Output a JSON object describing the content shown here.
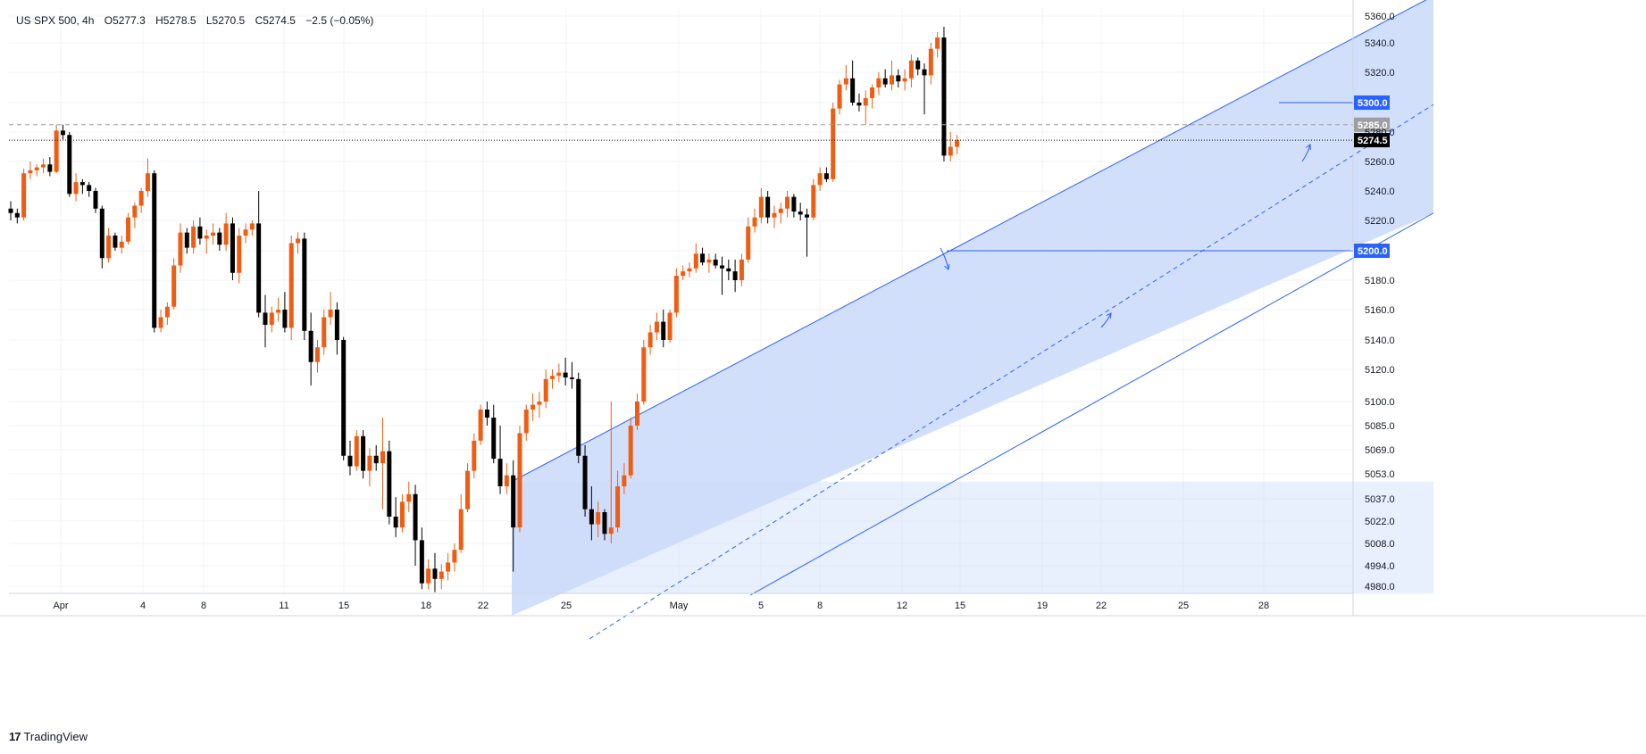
{
  "legend": {
    "symbol": "US SPX 500, 4h",
    "open": "O5277.3",
    "high": "H5278.5",
    "low": "L5270.5",
    "close": "C5274.5",
    "change": "−2.5 (−0.05%)"
  },
  "brand": {
    "logo": "17",
    "name": "TradingView"
  },
  "colors": {
    "up": "#ef5d13",
    "down": "#000000",
    "channel_fill": "#cddcfb",
    "channel_line": "#2962ff",
    "level_line": "#2962ff",
    "dashed_level": "#9e9e9e",
    "price_line": "#000000"
  },
  "chart_data": {
    "type": "candlestick",
    "title": "US SPX 500, 4h",
    "timeframe": "4h",
    "y_scale": "non-linear (as printed on the price axis)",
    "ylim": [
      4975,
      5362
    ],
    "y_ticks": [
      "5360.0",
      "5340.0",
      "5320.0",
      "5300.0",
      "5280.0",
      "5260.0",
      "5240.0",
      "5220.0",
      "5200.0",
      "5180.0",
      "5160.0",
      "5140.0",
      "5120.0",
      "5100.0",
      "5085.0",
      "5069.0",
      "5053.0",
      "5037.0",
      "5022.0",
      "5008.0",
      "4994.0",
      "4980.0"
    ],
    "x_ticks": [
      "Apr",
      "4",
      "8",
      "11",
      "15",
      "18",
      "22",
      "25",
      "May",
      "5",
      "8",
      "12",
      "15",
      "19",
      "22",
      "25",
      "28"
    ],
    "grid": true,
    "candles_approx": [
      [
        5228,
        5233,
        5220,
        5225
      ],
      [
        5225,
        5228,
        5218,
        5222
      ],
      [
        5222,
        5255,
        5220,
        5252
      ],
      [
        5252,
        5260,
        5248,
        5254
      ],
      [
        5254,
        5258,
        5250,
        5256
      ],
      [
        5256,
        5262,
        5252,
        5258
      ],
      [
        5258,
        5263,
        5250,
        5253
      ],
      [
        5253,
        5285,
        5252,
        5281
      ],
      [
        5281,
        5285,
        5275,
        5278
      ],
      [
        5278,
        5280,
        5236,
        5238
      ],
      [
        5238,
        5252,
        5233,
        5246
      ],
      [
        5246,
        5248,
        5238,
        5244
      ],
      [
        5244,
        5246,
        5236,
        5240
      ],
      [
        5240,
        5242,
        5225,
        5228
      ],
      [
        5228,
        5230,
        5188,
        5195
      ],
      [
        5195,
        5215,
        5192,
        5210
      ],
      [
        5210,
        5212,
        5200,
        5202
      ],
      [
        5202,
        5210,
        5198,
        5206
      ],
      [
        5206,
        5225,
        5204,
        5222
      ],
      [
        5222,
        5232,
        5215,
        5230
      ],
      [
        5230,
        5242,
        5225,
        5240
      ],
      [
        5240,
        5262,
        5236,
        5252
      ],
      [
        5252,
        5254,
        5145,
        5148
      ],
      [
        5148,
        5160,
        5145,
        5155
      ],
      [
        5155,
        5165,
        5150,
        5162
      ],
      [
        5162,
        5195,
        5160,
        5190
      ],
      [
        5190,
        5218,
        5185,
        5212
      ],
      [
        5212,
        5215,
        5198,
        5202
      ],
      [
        5202,
        5220,
        5198,
        5216
      ],
      [
        5216,
        5222,
        5204,
        5208
      ],
      [
        5208,
        5214,
        5198,
        5210
      ],
      [
        5210,
        5218,
        5204,
        5212
      ],
      [
        5212,
        5215,
        5200,
        5204
      ],
      [
        5204,
        5225,
        5200,
        5218
      ],
      [
        5218,
        5222,
        5180,
        5185
      ],
      [
        5185,
        5215,
        5178,
        5210
      ],
      [
        5210,
        5218,
        5205,
        5214
      ],
      [
        5214,
        5220,
        5210,
        5218
      ],
      [
        5218,
        5240,
        5155,
        5158
      ],
      [
        5158,
        5170,
        5135,
        5150
      ],
      [
        5150,
        5162,
        5145,
        5158
      ],
      [
        5158,
        5168,
        5152,
        5160
      ],
      [
        5160,
        5172,
        5145,
        5148
      ],
      [
        5148,
        5210,
        5140,
        5205
      ],
      [
        5205,
        5212,
        5198,
        5208
      ],
      [
        5208,
        5212,
        5140,
        5146
      ],
      [
        5146,
        5158,
        5110,
        5125
      ],
      [
        5125,
        5140,
        5118,
        5135
      ],
      [
        5135,
        5160,
        5130,
        5155
      ],
      [
        5155,
        5172,
        5150,
        5160
      ],
      [
        5160,
        5165,
        5130,
        5140
      ],
      [
        5140,
        5142,
        5062,
        5065
      ],
      [
        5065,
        5075,
        5052,
        5058
      ],
      [
        5058,
        5082,
        5055,
        5078
      ],
      [
        5078,
        5082,
        5050,
        5055
      ],
      [
        5055,
        5070,
        5045,
        5065
      ],
      [
        5065,
        5072,
        5055,
        5060
      ],
      [
        5060,
        5090,
        5030,
        5068
      ],
      [
        5068,
        5075,
        5020,
        5025
      ],
      [
        5025,
        5038,
        5012,
        5018
      ],
      [
        5018,
        5040,
        5015,
        5035
      ],
      [
        5035,
        5048,
        5028,
        5040
      ],
      [
        5040,
        5046,
        4994,
        5010
      ],
      [
        5010,
        5018,
        4978,
        4982
      ],
      [
        4982,
        4998,
        4978,
        4992
      ],
      [
        4992,
        5002,
        4976,
        4985
      ],
      [
        4985,
        4995,
        4978,
        4990
      ],
      [
        4990,
        5002,
        4984,
        4996
      ],
      [
        4996,
        5008,
        4990,
        5004
      ],
      [
        5004,
        5040,
        5002,
        5030
      ],
      [
        5030,
        5060,
        5028,
        5055
      ],
      [
        5055,
        5080,
        5050,
        5075
      ],
      [
        5075,
        5098,
        5072,
        5095
      ],
      [
        5095,
        5100,
        5085,
        5090
      ],
      [
        5090,
        5098,
        5060,
        5063
      ],
      [
        5063,
        5085,
        5040,
        5045
      ],
      [
        5045,
        5060,
        5040,
        5052
      ],
      [
        5052,
        5062,
        4990,
        5018
      ],
      [
        5018,
        5085,
        5015,
        5080
      ],
      [
        5080,
        5098,
        5075,
        5095
      ],
      [
        5095,
        5105,
        5088,
        5098
      ],
      [
        5098,
        5106,
        5090,
        5100
      ],
      [
        5100,
        5120,
        5096,
        5114
      ],
      [
        5114,
        5120,
        5108,
        5116
      ],
      [
        5116,
        5124,
        5112,
        5118
      ],
      [
        5118,
        5128,
        5110,
        5115
      ],
      [
        5115,
        5125,
        5108,
        5114
      ],
      [
        5114,
        5118,
        5060,
        5065
      ],
      [
        5065,
        5072,
        5025,
        5030
      ],
      [
        5030,
        5045,
        5010,
        5020
      ],
      [
        5020,
        5035,
        5012,
        5028
      ],
      [
        5028,
        5030,
        5010,
        5014
      ],
      [
        5014,
        5100,
        5008,
        5018
      ],
      [
        5018,
        5055,
        5015,
        5045
      ],
      [
        5045,
        5060,
        5040,
        5052
      ],
      [
        5052,
        5090,
        5050,
        5085
      ],
      [
        5085,
        5105,
        5082,
        5100
      ],
      [
        5100,
        5140,
        5098,
        5135
      ],
      [
        5135,
        5150,
        5130,
        5145
      ],
      [
        5145,
        5158,
        5140,
        5152
      ],
      [
        5152,
        5160,
        5135,
        5140
      ],
      [
        5140,
        5160,
        5138,
        5158
      ],
      [
        5158,
        5188,
        5155,
        5183
      ],
      [
        5183,
        5190,
        5180,
        5186
      ],
      [
        5186,
        5192,
        5182,
        5188
      ],
      [
        5188,
        5205,
        5185,
        5198
      ],
      [
        5198,
        5202,
        5190,
        5192
      ],
      [
        5192,
        5198,
        5185,
        5194
      ],
      [
        5194,
        5198,
        5188,
        5190
      ],
      [
        5190,
        5196,
        5170,
        5188
      ],
      [
        5188,
        5194,
        5180,
        5186
      ],
      [
        5186,
        5194,
        5172,
        5180
      ],
      [
        5180,
        5198,
        5176,
        5194
      ],
      [
        5194,
        5222,
        5192,
        5216
      ],
      [
        5216,
        5228,
        5212,
        5222
      ],
      [
        5222,
        5242,
        5218,
        5236
      ],
      [
        5236,
        5240,
        5218,
        5222
      ],
      [
        5222,
        5230,
        5215,
        5225
      ],
      [
        5225,
        5232,
        5218,
        5228
      ],
      [
        5228,
        5240,
        5222,
        5236
      ],
      [
        5236,
        5238,
        5222,
        5226
      ],
      [
        5226,
        5232,
        5220,
        5224
      ],
      [
        5224,
        5228,
        5196,
        5222
      ],
      [
        5222,
        5248,
        5220,
        5244
      ],
      [
        5244,
        5256,
        5240,
        5252
      ],
      [
        5252,
        5256,
        5246,
        5248
      ],
      [
        5248,
        5300,
        5246,
        5296
      ],
      [
        5296,
        5315,
        5292,
        5312
      ],
      [
        5312,
        5325,
        5308,
        5316
      ],
      [
        5316,
        5328,
        5298,
        5300
      ],
      [
        5300,
        5306,
        5294,
        5298
      ],
      [
        5298,
        5308,
        5285,
        5303
      ],
      [
        5303,
        5312,
        5296,
        5310
      ],
      [
        5310,
        5320,
        5305,
        5316
      ],
      [
        5316,
        5322,
        5310,
        5312
      ],
      [
        5312,
        5328,
        5308,
        5318
      ],
      [
        5318,
        5322,
        5310,
        5314
      ],
      [
        5314,
        5322,
        5308,
        5316
      ],
      [
        5316,
        5332,
        5310,
        5328
      ],
      [
        5328,
        5330,
        5318,
        5322
      ],
      [
        5322,
        5326,
        5292,
        5318
      ],
      [
        5318,
        5340,
        5312,
        5336
      ],
      [
        5336,
        5348,
        5330,
        5344
      ],
      [
        5344,
        5352,
        5260,
        5264
      ],
      [
        5264,
        5280,
        5260,
        5270
      ],
      [
        5270,
        5278,
        5265,
        5274.5
      ]
    ],
    "levels": [
      {
        "value": 5300.0,
        "label": "5300.0",
        "style": "solid"
      },
      {
        "value": 5285.0,
        "label": "5285.0",
        "style": "dashed"
      },
      {
        "value": 5274.5,
        "label": "5274.5",
        "style": "dotted",
        "current": true
      },
      {
        "value": 5200.0,
        "label": "5200.0",
        "style": "solid"
      }
    ],
    "channel": {
      "description": "ascending price channel (blue) with dashed midline",
      "start_price_upper": 5048,
      "end_price_upper": 5375,
      "start_price_lower": 4960,
      "end_price_lower": 5225
    }
  }
}
